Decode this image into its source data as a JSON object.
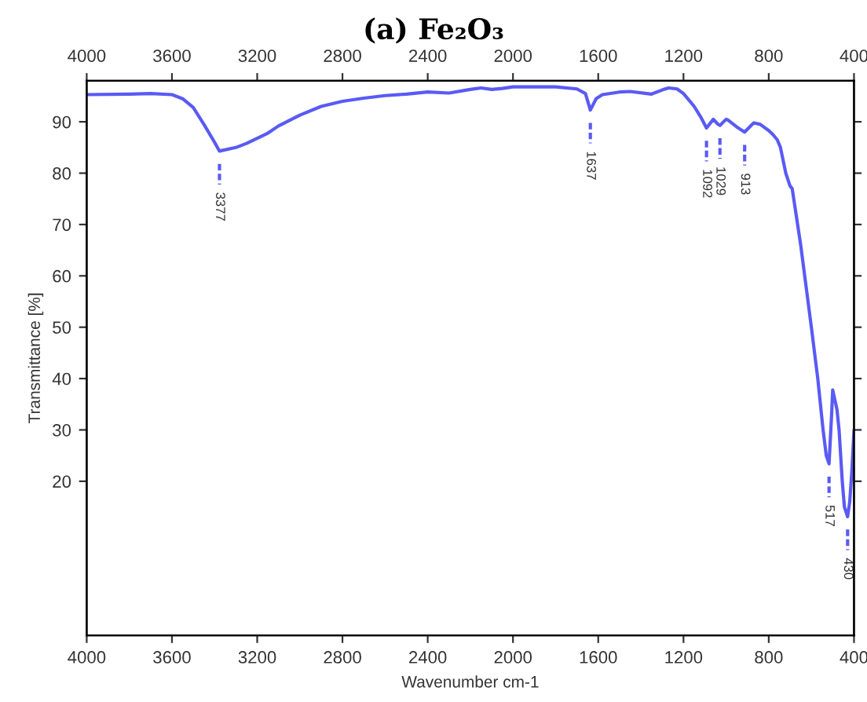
{
  "chart_data": {
    "type": "line",
    "title": "(a) Fe₂O₃",
    "xlabel": "Wavenumber cm-1",
    "ylabel": "Transmittance [%]",
    "x": [
      4000,
      3800,
      3700,
      3600,
      3550,
      3500,
      3450,
      3400,
      3377,
      3300,
      3250,
      3150,
      3100,
      3000,
      2900,
      2800,
      2700,
      2600,
      2500,
      2400,
      2300,
      2200,
      2150,
      2100,
      2050,
      2000,
      1900,
      1800,
      1700,
      1660,
      1637,
      1610,
      1580,
      1500,
      1450,
      1350,
      1300,
      1270,
      1230,
      1200,
      1150,
      1120,
      1092,
      1060,
      1040,
      1029,
      1000,
      990,
      950,
      913,
      880,
      870,
      840,
      800,
      780,
      760,
      745,
      720,
      700,
      690,
      650,
      600,
      570,
      545,
      530,
      517,
      505,
      500,
      480,
      470,
      455,
      445,
      430,
      420,
      410,
      400
    ],
    "series": [
      {
        "color": "#5a5af5",
        "values": [
          95.3,
          95.4,
          95.5,
          95.3,
          94.5,
          92.8,
          89.5,
          86,
          84.3,
          85,
          85.8,
          87.8,
          89.2,
          91.3,
          93,
          94,
          94.6,
          95.1,
          95.4,
          95.8,
          95.6,
          96.3,
          96.6,
          96.3,
          96.5,
          96.8,
          96.8,
          96.8,
          96.4,
          95.5,
          92.3,
          94.5,
          95.3,
          95.8,
          95.9,
          95.4,
          96.2,
          96.6,
          96.4,
          95.5,
          93,
          91,
          88.8,
          90.5,
          89.6,
          89.3,
          90.5,
          90.3,
          89,
          88,
          89.4,
          89.8,
          89.5,
          88.3,
          87.5,
          86.5,
          85,
          80,
          77.5,
          77,
          66,
          50,
          40,
          30,
          25,
          23.4,
          33,
          37.8,
          34,
          30,
          20,
          15,
          13.1,
          16,
          22,
          29.8
        ]
      }
    ],
    "annotations": [
      {
        "text": "3377",
        "x": 3377,
        "y": 84.3
      },
      {
        "text": "1637",
        "x": 1637,
        "y": 92.3
      },
      {
        "text": "1092",
        "x": 1092,
        "y": 88.8
      },
      {
        "text": "1029",
        "x": 1029,
        "y": 89.3
      },
      {
        "text": "913",
        "x": 913,
        "y": 88
      },
      {
        "text": "517",
        "x": 517,
        "y": 23.4
      },
      {
        "text": "430",
        "x": 430,
        "y": 13.1
      }
    ],
    "xlim": [
      4000,
      400
    ],
    "xticks": [
      4000,
      3600,
      3200,
      2800,
      2400,
      2000,
      1600,
      1200,
      800,
      400
    ],
    "x2lim": [
      4000,
      400
    ],
    "x2ticks": [
      4000,
      3600,
      3200,
      2800,
      2400,
      2000,
      1600,
      1200,
      800,
      400
    ],
    "ylim": [
      -10,
      98
    ],
    "yticks": [
      20,
      30,
      40,
      50,
      60,
      70,
      80,
      90
    ],
    "grid": false,
    "legend": false,
    "marker": "none",
    "line_style": "solid"
  }
}
